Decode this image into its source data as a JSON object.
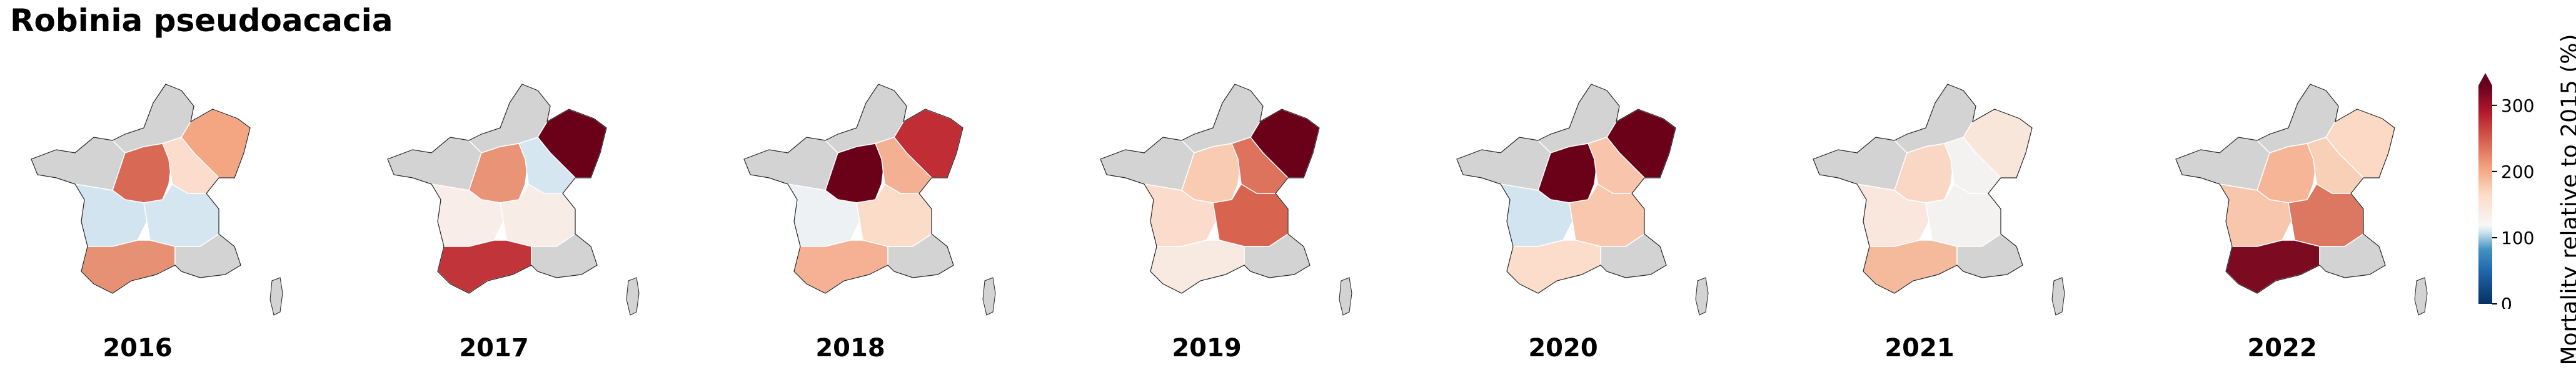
{
  "title": "Robinia pseudoacacia",
  "colorbar": {
    "label": "Mortality relative to 2015 (%)",
    "ticks": [
      0,
      100,
      200,
      300
    ],
    "range": [
      0,
      330
    ],
    "extend": "max",
    "colormap": "RdBu_r"
  },
  "no_data_color": "#d3d3d3",
  "region_names": [
    "northwest",
    "north",
    "northeast",
    "centre",
    "east",
    "southwest",
    "south",
    "southeast"
  ],
  "panels": [
    {
      "year": "2016",
      "regions": {
        "northwest": "nodata",
        "north": "nodata",
        "northeast": "#f4a683",
        "centre": "#d86a55",
        "east": "#d5e6f0",
        "southwest": "#d1e4ef",
        "south": "#e69074",
        "southeast": "nodata",
        "east_centre": "#fcdccc"
      }
    },
    {
      "year": "2017",
      "regions": {
        "northwest": "nodata",
        "north": "nodata",
        "northeast": "#6b0019",
        "centre": "#e99377",
        "east": "#f7ece6",
        "southwest": "#f8ede8",
        "south": "#c0343a",
        "southeast": "nodata",
        "east_centre": "#d5e6f1"
      }
    },
    {
      "year": "2018",
      "regions": {
        "northwest": "nodata",
        "north": "nodata",
        "northeast": "#c02d34",
        "centre": "#6b0019",
        "east": "#fbdcc8",
        "southwest": "#eef1f3",
        "south": "#f6b195",
        "southeast": "nodata",
        "east_centre": "#f4b093"
      }
    },
    {
      "year": "2019",
      "regions": {
        "northwest": "nodata",
        "north": "nodata",
        "northeast": "#6b0019",
        "centre": "#f9cbb2",
        "east": "#d8634f",
        "southwest": "#fbdccc",
        "south": "#f8e9e1",
        "southeast": "nodata",
        "east_centre": "#dd735d"
      }
    },
    {
      "year": "2020",
      "regions": {
        "northwest": "nodata",
        "north": "nodata",
        "northeast": "#6b0019",
        "centre": "#6b0019",
        "east": "#f8c7ae",
        "southwest": "#d1e4ef",
        "south": "#fcdccb",
        "southeast": "nodata",
        "east_centre": "#f8c5ac"
      }
    },
    {
      "year": "2021",
      "regions": {
        "northwest": "nodata",
        "north": "nodata",
        "northeast": "#f8e6db",
        "centre": "#f9d7c4",
        "east": "#f4f2f1",
        "southwest": "#f9e6dd",
        "south": "#f5ba9c",
        "southeast": "nodata",
        "east_centre": "#f4f2f1"
      }
    },
    {
      "year": "2022",
      "regions": {
        "northwest": "nodata",
        "north": "nodata",
        "northeast": "#fbd9c4",
        "centre": "#f5b596",
        "east": "#dc7761",
        "southwest": "#f8c6ad",
        "south": "#7c0a20",
        "southeast": "nodata",
        "east_centre": "#f8d0b8"
      }
    }
  ]
}
